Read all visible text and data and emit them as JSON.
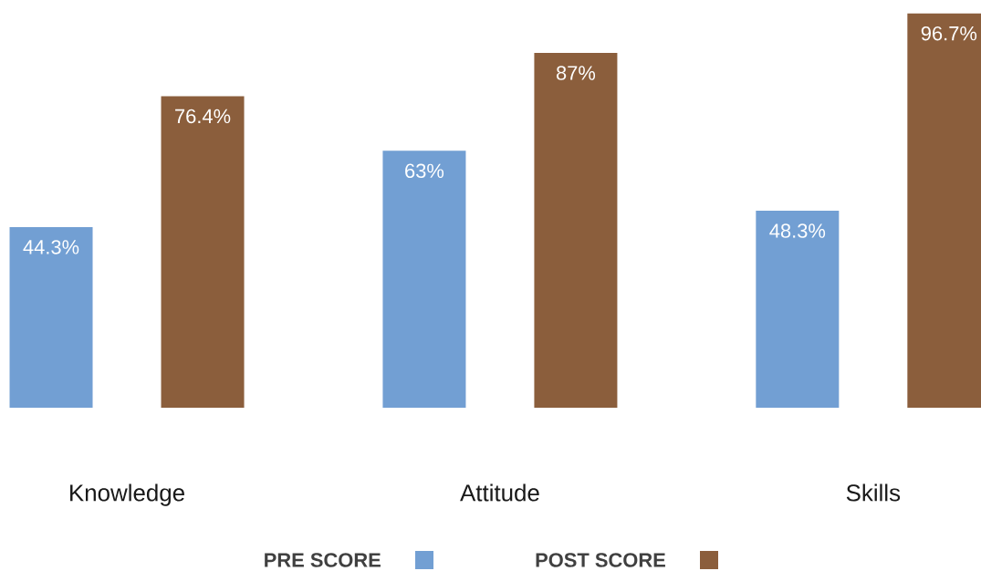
{
  "chart_data": {
    "type": "bar",
    "categories": [
      "Knowledge",
      "Attitude",
      "Skills"
    ],
    "series": [
      {
        "name": "PRE SCORE",
        "color": "#729fd3",
        "values": [
          44.3,
          63,
          48.3
        ],
        "value_labels": [
          "44.3%",
          "63%",
          "48.3%"
        ]
      },
      {
        "name": "POST SCORE",
        "color": "#8b5e3c",
        "values": [
          76.4,
          87,
          96.7
        ],
        "value_labels": [
          "76.4%",
          "87%",
          "96.7%"
        ]
      }
    ],
    "legend": "bottom"
  }
}
